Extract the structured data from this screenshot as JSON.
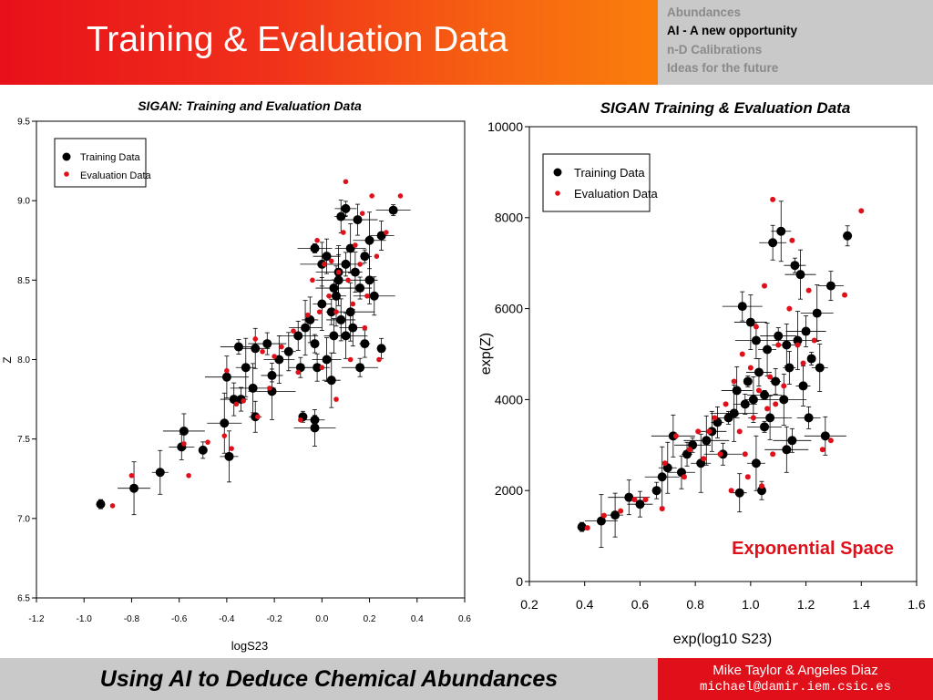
{
  "slide": {
    "title": "Training & Evaluation Data",
    "accent_red": "#e8101a",
    "accent_orange": "#fa7e0c",
    "panel_gray": "#c9c9c9"
  },
  "nav": {
    "items": [
      {
        "label": "Abundances",
        "active": false
      },
      {
        "label": "AI - A new opportunity",
        "active": true
      },
      {
        "label": "n-D Calibrations",
        "active": false
      },
      {
        "label": "Ideas for the future",
        "active": false
      }
    ]
  },
  "footer": {
    "title": "Using AI to Deduce Chemical Abundances",
    "authors": "Mike Taylor & Angeles Diaz",
    "email": "michael@damir.iem.csic.es"
  },
  "chart_data": [
    {
      "type": "scatter",
      "title": "SIGAN: Training and Evaluation Data",
      "xlabel": "logS23",
      "ylabel": "Z",
      "xlim": [
        -1.2,
        0.6
      ],
      "ylim": [
        6.5,
        9.5
      ],
      "xticks": [
        -1.2,
        -1.0,
        -0.8,
        -0.6,
        -0.4,
        -0.2,
        0.0,
        0.2,
        0.4,
        0.6
      ],
      "yticks": [
        6.5,
        7.0,
        7.5,
        8.0,
        8.5,
        9.0,
        9.5
      ],
      "xtick_labels": [
        "-1.2",
        "-1.0",
        "-0.8",
        "-0.6",
        "-0.4",
        "-0.2",
        "0.0",
        "0.2",
        "0.4",
        "0.6"
      ],
      "ytick_labels": [
        "6.5",
        "7.0",
        "7.5",
        "8.0",
        "8.5",
        "9.0",
        "9.5"
      ],
      "grid": false,
      "legend_position": "top-left",
      "error_bars": true,
      "series": [
        {
          "name": "Training Data",
          "color": "#000000",
          "marker": "large-dot",
          "points": [
            [
              -0.93,
              7.09
            ],
            [
              -0.79,
              7.19
            ],
            [
              -0.68,
              7.29
            ],
            [
              -0.58,
              7.55
            ],
            [
              -0.59,
              7.45
            ],
            [
              -0.5,
              7.43
            ],
            [
              -0.41,
              7.6
            ],
            [
              -0.39,
              7.39
            ],
            [
              -0.4,
              7.89
            ],
            [
              -0.37,
              7.75
            ],
            [
              -0.34,
              7.75
            ],
            [
              -0.35,
              8.08
            ],
            [
              -0.32,
              7.95
            ],
            [
              -0.29,
              7.82
            ],
            [
              -0.28,
              8.07
            ],
            [
              -0.28,
              7.64
            ],
            [
              -0.23,
              8.1
            ],
            [
              -0.21,
              7.9
            ],
            [
              -0.21,
              7.8
            ],
            [
              -0.18,
              8.0
            ],
            [
              -0.14,
              8.05
            ],
            [
              -0.1,
              8.15
            ],
            [
              -0.09,
              7.95
            ],
            [
              -0.08,
              7.64
            ],
            [
              -0.07,
              8.2
            ],
            [
              -0.05,
              8.25
            ],
            [
              -0.03,
              7.57
            ],
            [
              -0.02,
              7.95
            ],
            [
              -0.03,
              8.1
            ],
            [
              -0.03,
              8.7
            ],
            [
              0.0,
              8.35
            ],
            [
              0.0,
              8.6
            ],
            [
              0.02,
              8.65
            ],
            [
              0.04,
              8.3
            ],
            [
              0.05,
              8.45
            ],
            [
              0.06,
              8.4
            ],
            [
              0.07,
              8.5
            ],
            [
              0.08,
              8.25
            ],
            [
              0.08,
              8.9
            ],
            [
              0.1,
              8.6
            ],
            [
              0.1,
              8.95
            ],
            [
              0.12,
              8.3
            ],
            [
              0.12,
              8.7
            ],
            [
              0.14,
              8.55
            ],
            [
              0.15,
              8.88
            ],
            [
              0.16,
              8.45
            ],
            [
              0.18,
              8.65
            ],
            [
              0.2,
              8.75
            ],
            [
              0.2,
              8.5
            ],
            [
              0.22,
              8.4
            ],
            [
              0.25,
              8.78
            ],
            [
              0.25,
              8.07
            ],
            [
              0.3,
              8.94
            ],
            [
              0.04,
              7.87
            ],
            [
              0.1,
              8.15
            ],
            [
              0.13,
              8.2
            ],
            [
              0.18,
              8.1
            ],
            [
              0.16,
              7.95
            ],
            [
              -0.03,
              7.62
            ],
            [
              0.07,
              8.55
            ],
            [
              0.02,
              8.0
            ],
            [
              0.05,
              8.15
            ]
          ]
        },
        {
          "name": "Evaluation Data",
          "color": "#e0101a",
          "marker": "small-dot",
          "points": [
            [
              -0.88,
              7.08
            ],
            [
              -0.8,
              7.27
            ],
            [
              -0.56,
              7.27
            ],
            [
              -0.58,
              7.47
            ],
            [
              -0.48,
              7.48
            ],
            [
              -0.41,
              7.52
            ],
            [
              -0.38,
              7.44
            ],
            [
              -0.4,
              7.93
            ],
            [
              -0.36,
              7.72
            ],
            [
              -0.33,
              7.74
            ],
            [
              -0.28,
              8.13
            ],
            [
              -0.27,
              7.64
            ],
            [
              -0.25,
              8.05
            ],
            [
              -0.22,
              7.82
            ],
            [
              -0.2,
              8.02
            ],
            [
              -0.17,
              8.08
            ],
            [
              -0.12,
              8.18
            ],
            [
              -0.1,
              7.92
            ],
            [
              -0.09,
              7.62
            ],
            [
              -0.06,
              8.28
            ],
            [
              -0.04,
              8.5
            ],
            [
              -0.02,
              8.75
            ],
            [
              -0.01,
              8.3
            ],
            [
              0.01,
              8.6
            ],
            [
              0.03,
              8.4
            ],
            [
              0.04,
              8.62
            ],
            [
              0.06,
              8.3
            ],
            [
              0.07,
              8.55
            ],
            [
              0.09,
              8.8
            ],
            [
              0.1,
              9.12
            ],
            [
              0.11,
              8.5
            ],
            [
              0.13,
              8.35
            ],
            [
              0.14,
              8.72
            ],
            [
              0.16,
              8.6
            ],
            [
              0.17,
              8.92
            ],
            [
              0.19,
              8.4
            ],
            [
              0.21,
              9.03
            ],
            [
              0.23,
              8.65
            ],
            [
              0.24,
              8.0
            ],
            [
              0.27,
              8.8
            ],
            [
              0.33,
              9.03
            ],
            [
              0.0,
              7.95
            ],
            [
              0.06,
              7.75
            ],
            [
              0.12,
              8.0
            ],
            [
              0.18,
              8.2
            ]
          ]
        }
      ]
    },
    {
      "type": "scatter",
      "title": "SIGAN Training & Evaluation Data",
      "xlabel": "exp(log10 S23)",
      "ylabel": "exp(Z)",
      "xlim": [
        0.2,
        1.6
      ],
      "ylim": [
        0,
        10000
      ],
      "xticks": [
        0.2,
        0.4,
        0.6,
        0.8,
        1.0,
        1.2,
        1.4,
        1.6
      ],
      "yticks": [
        0,
        2000,
        4000,
        6000,
        8000,
        10000
      ],
      "xtick_labels": [
        "0.2",
        "0.4",
        "0.6",
        "0.8",
        "1.0",
        "1.2",
        "1.4",
        "1.6"
      ],
      "ytick_labels": [
        "0",
        "2000",
        "4000",
        "6000",
        "8000",
        "10000"
      ],
      "grid": false,
      "legend_position": "top-left",
      "error_bars": true,
      "annotation": "Exponential Space",
      "annotation_color": "#e0101a",
      "series": [
        {
          "name": "Training Data",
          "color": "#000000",
          "marker": "large-dot",
          "points": [
            [
              0.39,
              1200
            ],
            [
              0.46,
              1330
            ],
            [
              0.51,
              1460
            ],
            [
              0.56,
              1850
            ],
            [
              0.6,
              1700
            ],
            [
              0.66,
              2000
            ],
            [
              0.68,
              2300
            ],
            [
              0.7,
              2500
            ],
            [
              0.72,
              3200
            ],
            [
              0.75,
              2400
            ],
            [
              0.77,
              2800
            ],
            [
              0.79,
              3000
            ],
            [
              0.82,
              2600
            ],
            [
              0.84,
              3100
            ],
            [
              0.86,
              3300
            ],
            [
              0.88,
              3500
            ],
            [
              0.9,
              2800
            ],
            [
              0.92,
              3600
            ],
            [
              0.94,
              3700
            ],
            [
              0.95,
              4200
            ],
            [
              0.96,
              1950
            ],
            [
              0.97,
              6050
            ],
            [
              0.98,
              3900
            ],
            [
              0.99,
              4400
            ],
            [
              1.0,
              5700
            ],
            [
              1.01,
              4000
            ],
            [
              1.02,
              5300
            ],
            [
              1.03,
              4600
            ],
            [
              1.04,
              2000
            ],
            [
              1.05,
              4100
            ],
            [
              1.06,
              5100
            ],
            [
              1.07,
              3600
            ],
            [
              1.08,
              7450
            ],
            [
              1.09,
              4400
            ],
            [
              1.1,
              5400
            ],
            [
              1.11,
              7700
            ],
            [
              1.12,
              4000
            ],
            [
              1.13,
              5200
            ],
            [
              1.14,
              4700
            ],
            [
              1.15,
              3100
            ],
            [
              1.16,
              6950
            ],
            [
              1.17,
              5300
            ],
            [
              1.18,
              6750
            ],
            [
              1.19,
              4300
            ],
            [
              1.2,
              5500
            ],
            [
              1.21,
              3600
            ],
            [
              1.22,
              4900
            ],
            [
              1.24,
              5900
            ],
            [
              1.25,
              4700
            ],
            [
              1.27,
              3200
            ],
            [
              1.29,
              6500
            ],
            [
              1.35,
              7600
            ],
            [
              1.05,
              3400
            ],
            [
              1.02,
              2600
            ],
            [
              1.13,
              2900
            ]
          ]
        },
        {
          "name": "Evaluation Data",
          "color": "#e0101a",
          "marker": "small-dot",
          "points": [
            [
              0.41,
              1180
            ],
            [
              0.47,
              1450
            ],
            [
              0.53,
              1550
            ],
            [
              0.58,
              1800
            ],
            [
              0.62,
              1800
            ],
            [
              0.68,
              1600
            ],
            [
              0.69,
              2600
            ],
            [
              0.73,
              3200
            ],
            [
              0.76,
              2300
            ],
            [
              0.78,
              2900
            ],
            [
              0.81,
              3300
            ],
            [
              0.83,
              2700
            ],
            [
              0.85,
              3300
            ],
            [
              0.87,
              3600
            ],
            [
              0.89,
              2800
            ],
            [
              0.91,
              3900
            ],
            [
              0.93,
              2000
            ],
            [
              0.94,
              4400
            ],
            [
              0.96,
              3300
            ],
            [
              0.97,
              5000
            ],
            [
              0.98,
              2800
            ],
            [
              1.0,
              4700
            ],
            [
              1.01,
              3600
            ],
            [
              1.02,
              5600
            ],
            [
              1.03,
              4200
            ],
            [
              1.04,
              2100
            ],
            [
              1.05,
              6500
            ],
            [
              1.06,
              3800
            ],
            [
              1.07,
              4500
            ],
            [
              1.08,
              8400
            ],
            [
              1.09,
              3900
            ],
            [
              1.1,
              5200
            ],
            [
              1.12,
              4300
            ],
            [
              1.14,
              6000
            ],
            [
              1.15,
              7500
            ],
            [
              1.17,
              5200
            ],
            [
              1.19,
              4800
            ],
            [
              1.21,
              6400
            ],
            [
              1.23,
              5300
            ],
            [
              1.26,
              2900
            ],
            [
              1.29,
              3100
            ],
            [
              1.34,
              6300
            ],
            [
              1.4,
              8150
            ],
            [
              1.08,
              2800
            ],
            [
              0.99,
              2300
            ]
          ]
        }
      ]
    }
  ]
}
